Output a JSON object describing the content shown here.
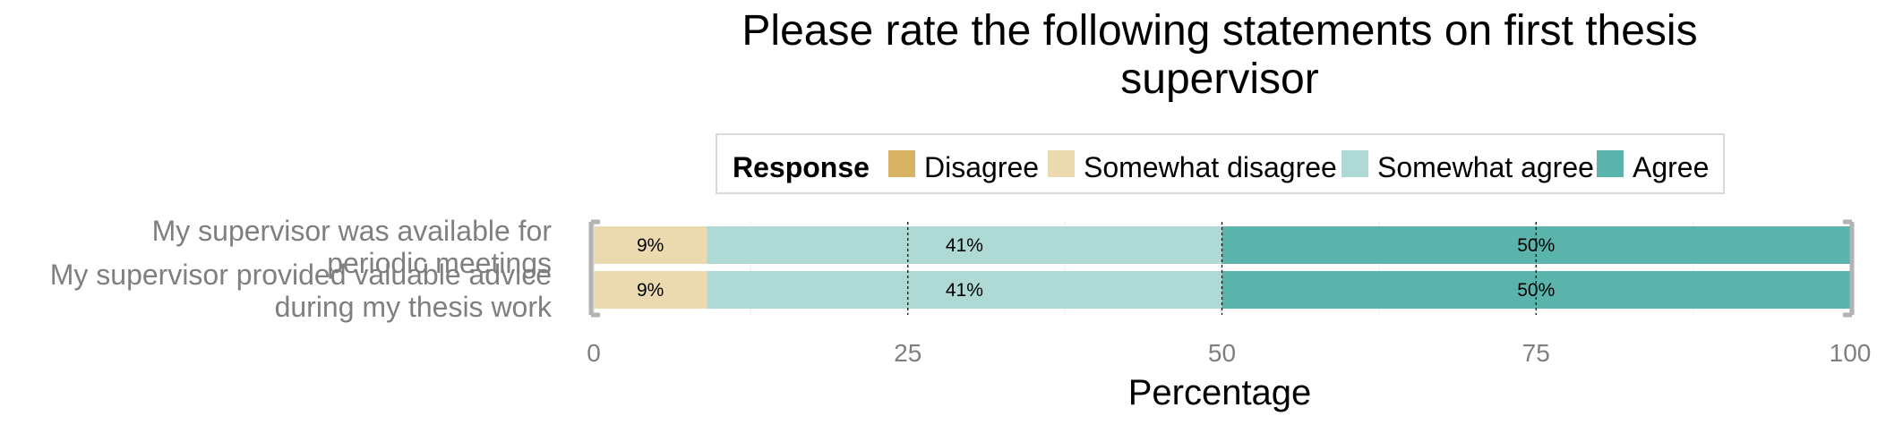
{
  "chart_data": {
    "type": "bar",
    "orientation": "horizontal",
    "stacked": true,
    "title": "Please rate the following statements on first thesis supervisor",
    "title_lines": [
      "Please rate the following statements on first thesis",
      "supervisor"
    ],
    "xlabel": "Percentage",
    "ylabel": "",
    "xlim": [
      0,
      100
    ],
    "xticks": [
      0,
      25,
      50,
      75,
      100
    ],
    "grid": true,
    "legend": {
      "title": "Response",
      "position": "top",
      "entries": [
        "Disagree",
        "Somewhat disagree",
        "Somewhat agree",
        "Agree"
      ]
    },
    "categories": [
      "My supervisor was available for periodic meetings",
      "My supervisor provided valuable advice during my thesis work"
    ],
    "category_label_lines": [
      [
        "My supervisor was available for",
        "periodic meetings"
      ],
      [
        "My supervisor provided valuable advice",
        "during my thesis work"
      ]
    ],
    "series": [
      {
        "name": "Disagree",
        "color": "#d8b365",
        "values": [
          0,
          0
        ],
        "labels": [
          "",
          ""
        ]
      },
      {
        "name": "Somewhat disagree",
        "color": "#ebd9b0",
        "values": [
          9,
          9
        ],
        "labels": [
          "9%",
          "9%"
        ]
      },
      {
        "name": "Somewhat agree",
        "color": "#aed9d5",
        "values": [
          41,
          41
        ],
        "labels": [
          "41%",
          "41%"
        ]
      },
      {
        "name": "Agree",
        "color": "#5ab4ac",
        "values": [
          50,
          50
        ],
        "labels": [
          "50%",
          "50%"
        ]
      }
    ]
  }
}
